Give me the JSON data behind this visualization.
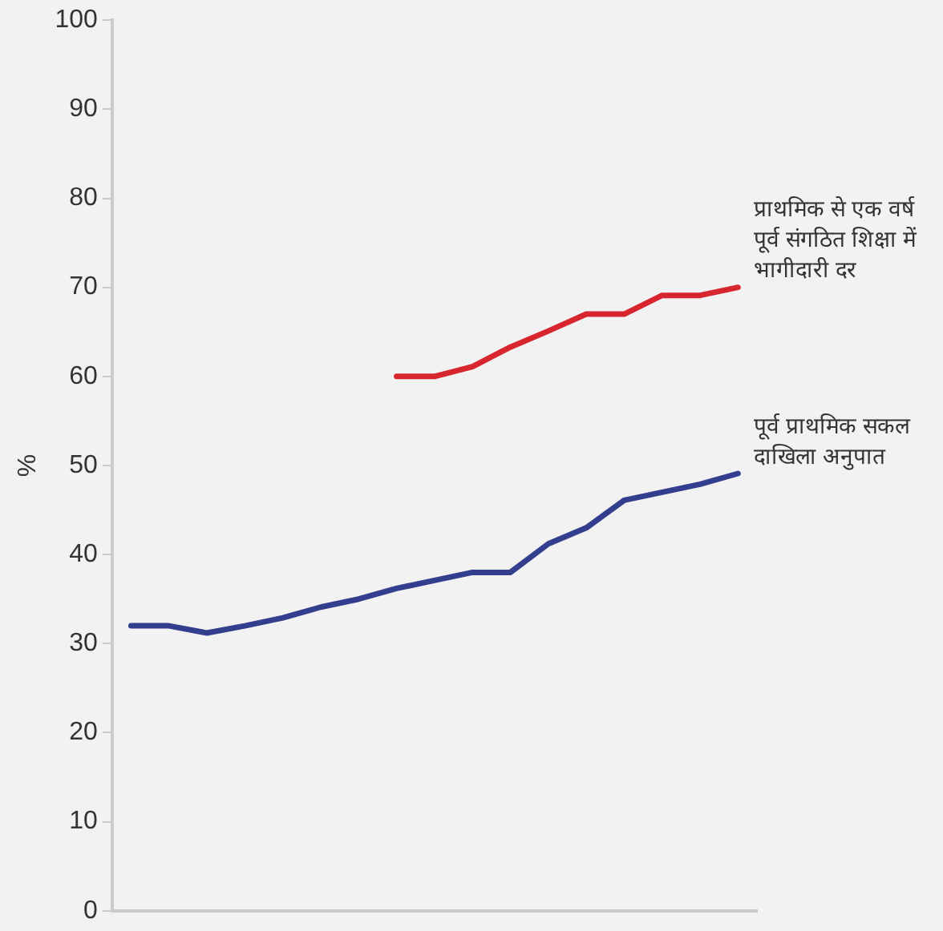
{
  "chart_data": {
    "type": "line",
    "ylabel": "%",
    "categories": [
      null,
      null,
      null,
      null,
      null,
      null,
      null,
      null,
      null,
      null,
      null,
      null,
      null,
      null,
      null,
      null,
      null
    ],
    "series": [
      {
        "name": "प्राथमिक से एक वर्ष पूर्व संगठित शिक्षा में भागीदारी दर",
        "color": "#d7262e",
        "values": [
          null,
          null,
          null,
          null,
          null,
          null,
          null,
          60,
          60,
          61.1,
          63.3,
          65.1,
          67,
          67,
          69.1,
          69.1,
          70
        ]
      },
      {
        "name": "पूर्व प्राथमिक सकल दाखिला अनुपात",
        "color": "#333f8e",
        "values": [
          32,
          32,
          31.2,
          32,
          32.9,
          34.1,
          35,
          36.2,
          37.1,
          38,
          38,
          41.2,
          43,
          46.1,
          47,
          47.9,
          49.1
        ]
      }
    ],
    "ylim": [
      0,
      100
    ],
    "yticks": [
      0,
      10,
      20,
      30,
      40,
      50,
      60,
      70,
      80,
      90,
      100
    ],
    "grid": false,
    "legend": false,
    "tick_labels": "y",
    "marker": "none",
    "line_style": "solid"
  }
}
